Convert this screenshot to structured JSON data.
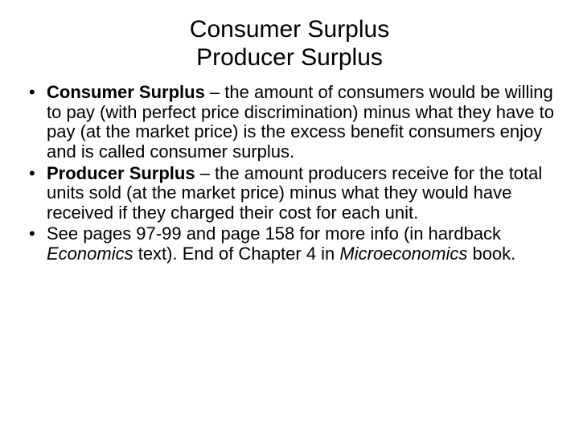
{
  "title": {
    "line1": "Consumer Surplus",
    "line2": "Producer Surplus"
  },
  "bullets": [
    {
      "bold": "Consumer Surplus",
      "rest": " – the amount of consumers would be willing to pay (with perfect price discrimination) minus what they have to pay (at the market price) is the excess benefit consumers enjoy and is called consumer surplus."
    },
    {
      "bold": "Producer Surplus",
      "rest": " – the amount producers receive for the total units sold (at the market price) minus what they would have received if they charged their cost for each unit."
    },
    {
      "pre": "See pages 97-99 and page 158 for more info (in hardback ",
      "italic1": "Economics",
      "mid": " text). End of Chapter 4 in ",
      "italic2": "Microeconomics",
      "post": " book."
    }
  ]
}
